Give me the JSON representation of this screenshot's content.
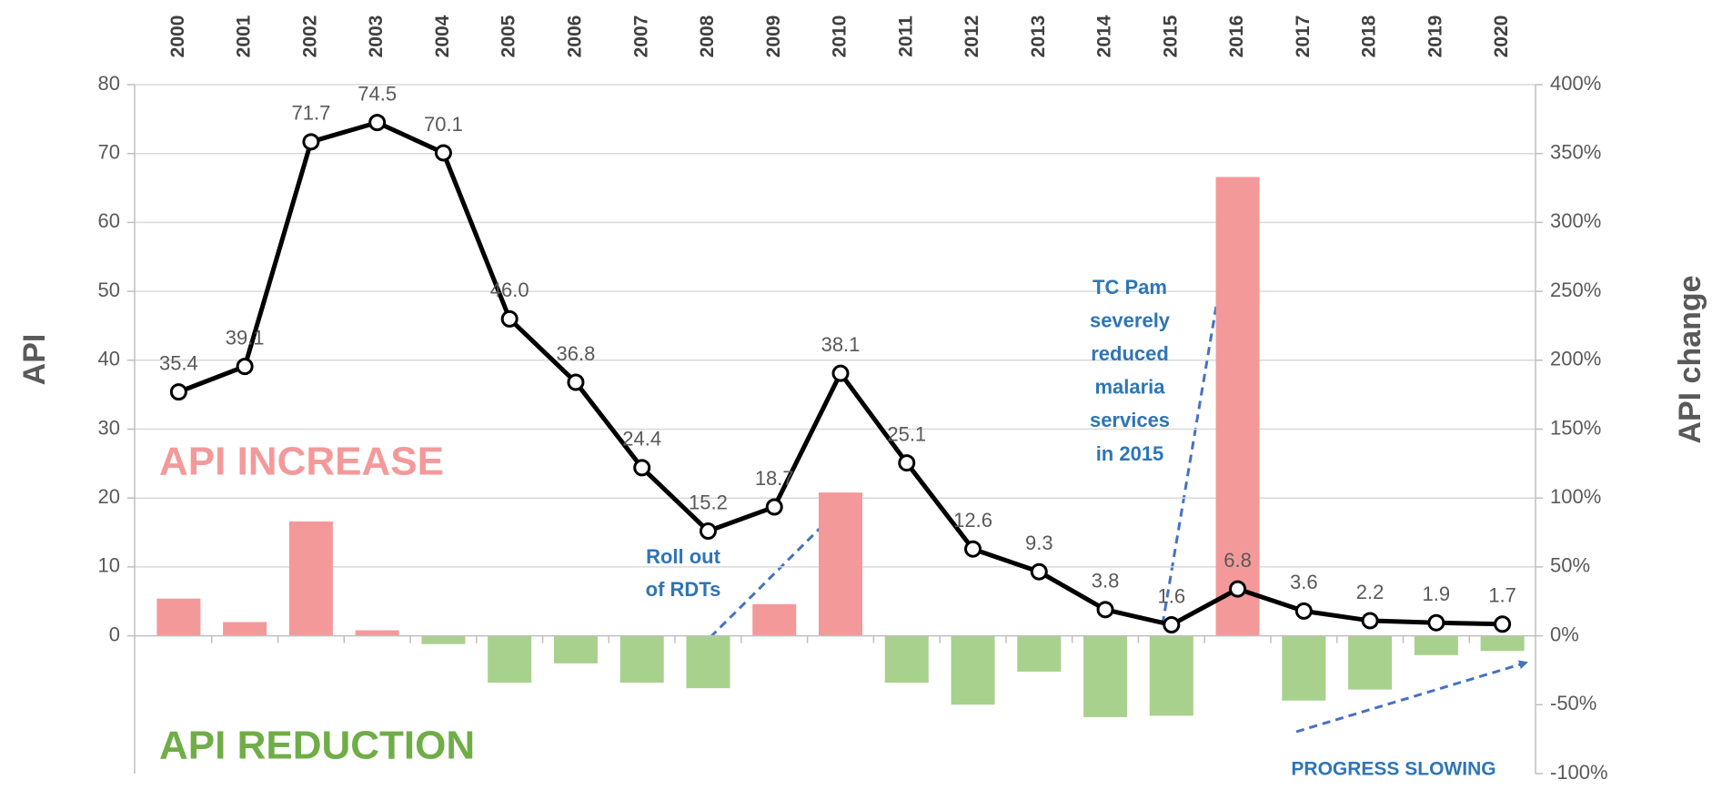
{
  "chart_data": {
    "type": "combo",
    "ylabel": "API",
    "y2label": "API change",
    "categories": [
      "2000",
      "2001",
      "2002",
      "2003",
      "2004",
      "2005",
      "2006",
      "2007",
      "2008",
      "2009",
      "2010",
      "2011",
      "2012",
      "2013",
      "2014",
      "2015",
      "2016",
      "2017",
      "2018",
      "2019",
      "2020"
    ],
    "series": [
      {
        "type": "bar",
        "axis": "y2",
        "positive_color": "#f4999a",
        "negative_color": "#a9d18e",
        "values": [
          27,
          10,
          83,
          4,
          -6,
          -34,
          -20,
          -34,
          -38,
          23,
          104,
          -34,
          -50,
          -26,
          -59,
          -58,
          333,
          -47,
          -39,
          -14,
          -11
        ]
      },
      {
        "type": "line",
        "axis": "y",
        "color": "#000000",
        "marker_fill": "#ffffff",
        "values": [
          35.4,
          39.1,
          71.7,
          74.5,
          70.1,
          46.0,
          36.8,
          24.4,
          15.2,
          18.7,
          38.1,
          25.1,
          12.6,
          9.3,
          3.8,
          1.6,
          6.8,
          3.6,
          2.2,
          1.9,
          1.7
        ],
        "value_labels": [
          "35.4",
          "39.1",
          "71.7",
          "74.5",
          "70.1",
          "46.0",
          "36.8",
          "24.4",
          "15.2",
          "18.7",
          "38.1",
          "25.1",
          "12.6",
          "9.3",
          "3.8",
          "1.6",
          "6.8",
          "3.6",
          "2.2",
          "1.9",
          "1.7"
        ]
      }
    ],
    "ylim": [
      -20,
      80
    ],
    "yticks": [
      0,
      10,
      20,
      30,
      40,
      50,
      60,
      70,
      80
    ],
    "y2lim": [
      -100,
      400
    ],
    "y2ticks": [
      {
        "value": -100,
        "label": "-100%"
      },
      {
        "value": -50,
        "label": "-50%"
      },
      {
        "value": 0,
        "label": "0%"
      },
      {
        "value": 50,
        "label": "50%"
      },
      {
        "value": 100,
        "label": "100%"
      },
      {
        "value": 150,
        "label": "150%"
      },
      {
        "value": 200,
        "label": "200%"
      },
      {
        "value": 250,
        "label": "250%"
      },
      {
        "value": 300,
        "label": "300%"
      },
      {
        "value": 350,
        "label": "350%"
      },
      {
        "value": 400,
        "label": "400%"
      }
    ],
    "grid": true,
    "annotations": [
      {
        "lines": [
          "API INCREASE"
        ],
        "color": "#f4999a"
      },
      {
        "lines": [
          "API REDUCTION"
        ],
        "color": "#70ad47"
      },
      {
        "lines": [
          "Roll out",
          "of RDTs"
        ],
        "color": "#2e75b6"
      },
      {
        "lines": [
          "TC Pam",
          "severely",
          "reduced",
          "malaria",
          "services",
          "in 2015"
        ],
        "color": "#2e75b6"
      },
      {
        "lines": [
          "PROGRESS SLOWING"
        ],
        "color": "#2e75b6"
      }
    ]
  }
}
